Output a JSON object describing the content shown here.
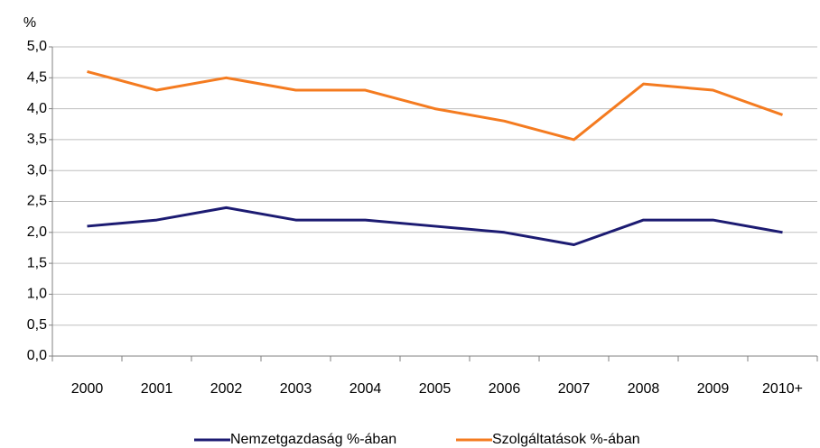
{
  "chart_data": {
    "type": "line",
    "y_unit_label": "%",
    "categories": [
      "2000",
      "2001",
      "2002",
      "2003",
      "2004",
      "2005",
      "2006",
      "2007",
      "2008",
      "2009",
      "2010+"
    ],
    "series": [
      {
        "name": "Nemzetgazdaság %-ában",
        "color": "#1c1b72",
        "values": [
          2.1,
          2.2,
          2.4,
          2.2,
          2.2,
          2.1,
          2.0,
          1.8,
          2.2,
          2.2,
          2.0
        ]
      },
      {
        "name": "Szolgáltatások %-ában",
        "color": "#f47b20",
        "values": [
          4.6,
          4.3,
          4.5,
          4.3,
          4.3,
          4.0,
          3.8,
          3.5,
          4.4,
          4.3,
          3.9
        ]
      }
    ],
    "ylim": [
      0,
      5
    ],
    "yticks": [
      {
        "value": 0,
        "label": "0,0"
      },
      {
        "value": 0.5,
        "label": "0,5"
      },
      {
        "value": 1,
        "label": "1,0"
      },
      {
        "value": 1.5,
        "label": "1,5"
      },
      {
        "value": 2,
        "label": "2,0"
      },
      {
        "value": 2.5,
        "label": "2,5"
      },
      {
        "value": 3,
        "label": "3,0"
      },
      {
        "value": 3.5,
        "label": "3,5"
      },
      {
        "value": 4,
        "label": "4,0"
      },
      {
        "value": 4.5,
        "label": "4,5"
      },
      {
        "value": 5,
        "label": "5,0"
      }
    ],
    "grid": true,
    "legend": "bottom"
  }
}
